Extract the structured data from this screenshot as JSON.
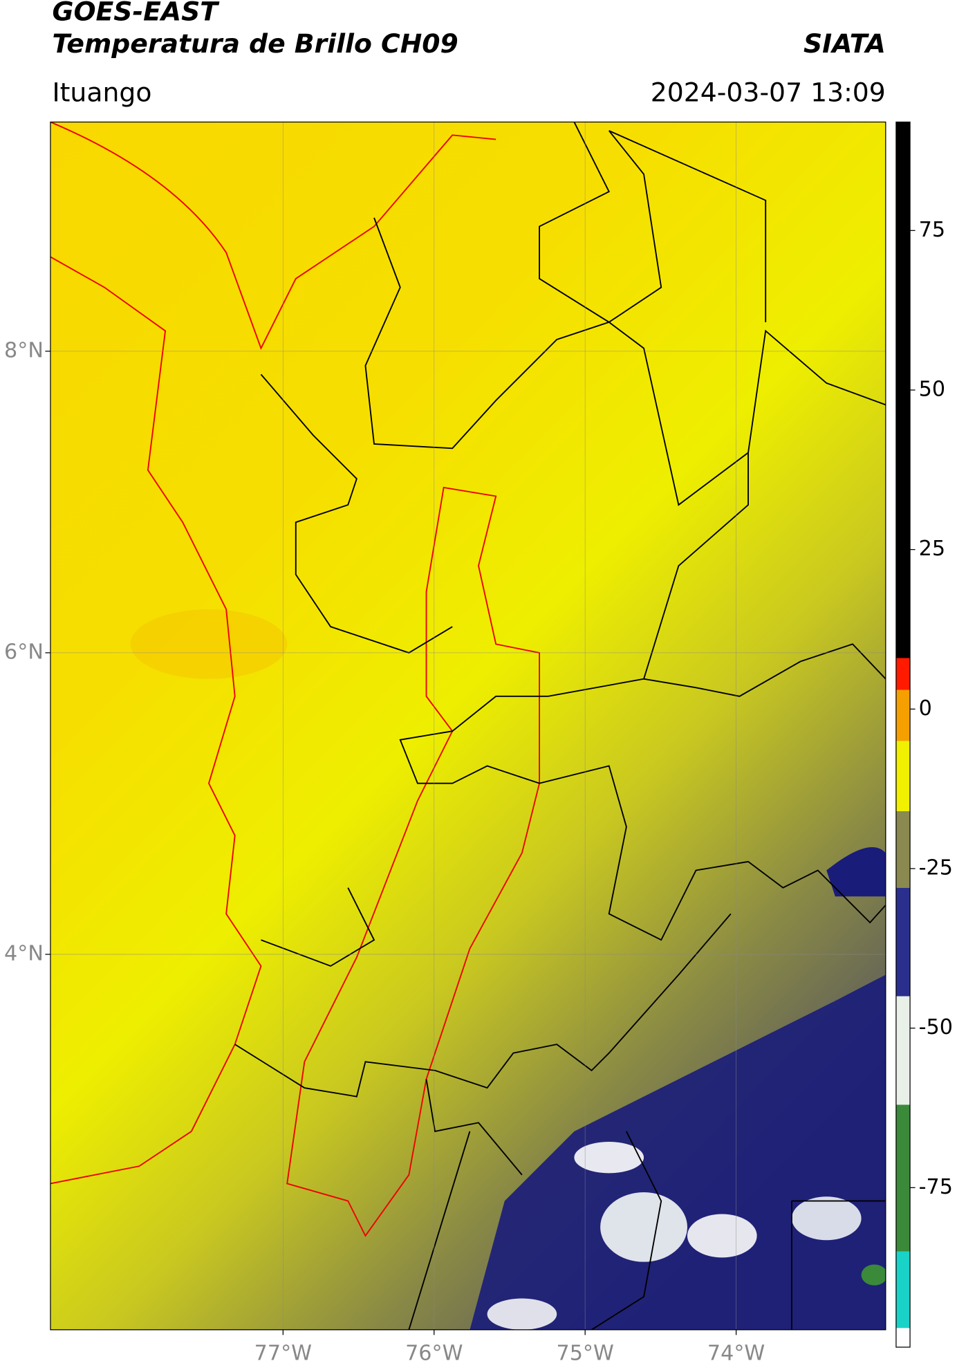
{
  "map": {
    "title": "GOES-EAST",
    "subtitle": "Temperatura de Brillo CH09",
    "source": "SIATA",
    "location": "Ituango",
    "datetime": "2024-03-07 13:09",
    "xlim": [
      -78.54,
      -73.01
    ],
    "ylim": [
      1.51,
      9.52
    ],
    "xticks": [
      {
        "value": -77,
        "label": "77°W"
      },
      {
        "value": -76,
        "label": "76°W"
      },
      {
        "value": -75,
        "label": "75°W"
      },
      {
        "value": -74,
        "label": "74°W"
      }
    ],
    "yticks": [
      {
        "value": 4,
        "label": "4°N"
      },
      {
        "value": 6,
        "label": "6°N"
      },
      {
        "value": 8,
        "label": "8°N"
      }
    ],
    "grid": true,
    "colorbar": {
      "lim": [
        -100,
        92
      ],
      "ticks": [
        -75,
        -50,
        -25,
        0,
        25,
        50,
        75
      ],
      "bands": [
        {
          "from": -100,
          "to": -97,
          "color": "#ffffff"
        },
        {
          "from": -97,
          "to": -85,
          "color": "#19d3c8"
        },
        {
          "from": -85,
          "to": -62,
          "color": "#3a8a3a"
        },
        {
          "from": -62,
          "to": -45,
          "color": "#e8f0e8"
        },
        {
          "from": -45,
          "to": -28,
          "color": "#2a2f8e"
        },
        {
          "from": -28,
          "to": -16,
          "color": "#8a8a50"
        },
        {
          "from": -16,
          "to": -5,
          "color": "#f0f000"
        },
        {
          "from": -5,
          "to": 3,
          "color": "#f5a000"
        },
        {
          "from": 3,
          "to": 8,
          "color": "#ff1a00"
        },
        {
          "from": 8,
          "to": 92,
          "color": "#000000"
        }
      ]
    }
  }
}
